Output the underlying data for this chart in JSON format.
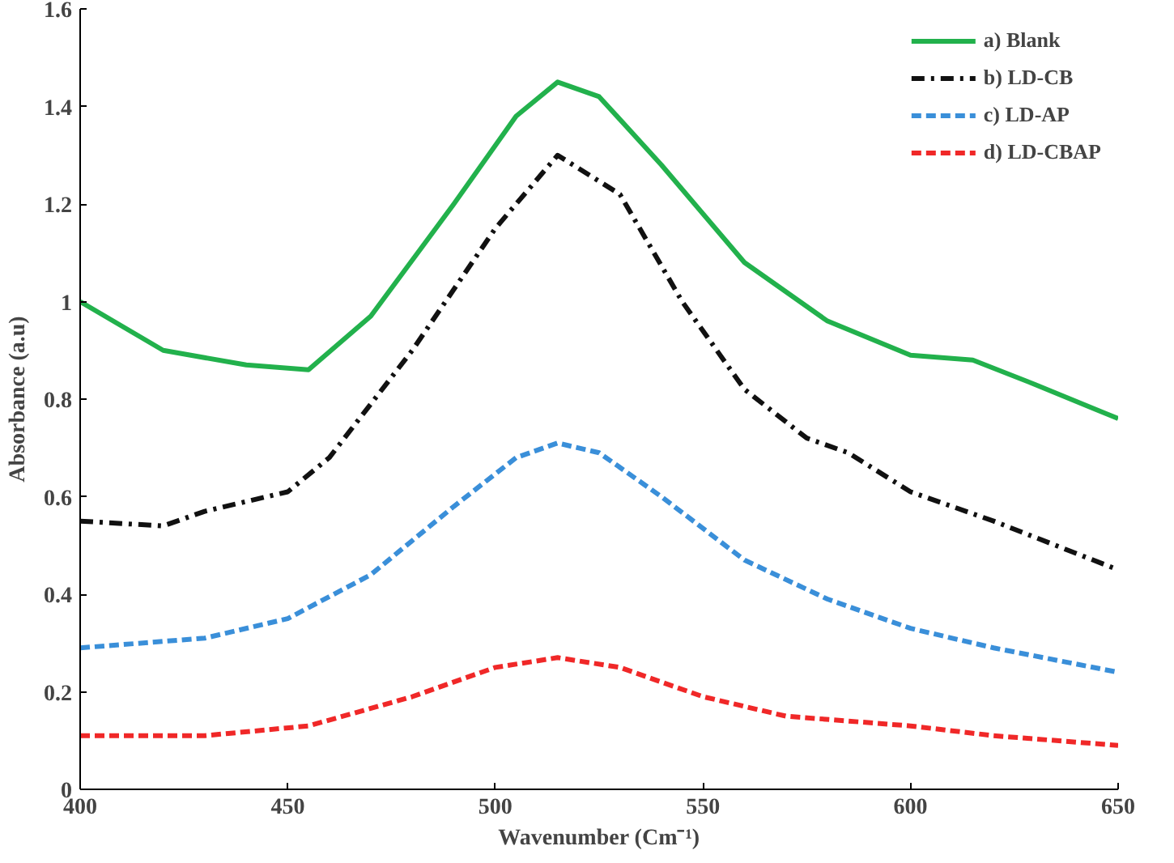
{
  "chart_data": {
    "type": "line",
    "xlabel": "Wavenumber (Cm⁻¹)",
    "ylabel": "Absorbance (a.u)",
    "xlim": [
      400,
      650
    ],
    "xticks": [
      400,
      450,
      500,
      550,
      600,
      650
    ],
    "ylim": [
      0,
      1.6
    ],
    "yticks": [
      {
        "value": 0,
        "label": "0"
      },
      {
        "value": 0.2,
        "label": "0.2"
      },
      {
        "value": 0.4,
        "label": "0.4"
      },
      {
        "value": 0.6,
        "label": "0.6"
      },
      {
        "value": 0.8,
        "label": "0.8"
      },
      {
        "value": 1,
        "label": "1"
      },
      {
        "value": 1.2,
        "label": "1.2"
      },
      {
        "value": 1.4,
        "label": "1.4"
      },
      {
        "value": 1.6,
        "label": "1.6"
      }
    ],
    "grid": false,
    "legend": "top right",
    "marker": "none",
    "series": [
      {
        "name": "a) Blank",
        "color": "#22b14c",
        "line_style": "solid",
        "x": [
          400,
          420,
          440,
          455,
          470,
          490,
          505,
          515,
          525,
          540,
          560,
          580,
          600,
          615,
          630,
          650
        ],
        "values": [
          1.0,
          0.9,
          0.87,
          0.86,
          0.97,
          1.2,
          1.38,
          1.45,
          1.42,
          1.28,
          1.08,
          0.96,
          0.89,
          0.88,
          0.83,
          0.76
        ]
      },
      {
        "name": "b) LD-CB",
        "color": "#111111",
        "line_style": "dashdot",
        "x": [
          400,
          420,
          430,
          450,
          460,
          480,
          500,
          515,
          530,
          545,
          560,
          575,
          585,
          600,
          620,
          650
        ],
        "values": [
          0.55,
          0.54,
          0.57,
          0.61,
          0.68,
          0.9,
          1.15,
          1.3,
          1.22,
          1.0,
          0.82,
          0.72,
          0.69,
          0.61,
          0.55,
          0.45
        ]
      },
      {
        "name": "c) LD-AP",
        "color": "#3a8fd9",
        "line_style": "dashed",
        "x": [
          400,
          430,
          450,
          470,
          490,
          505,
          515,
          525,
          540,
          560,
          580,
          600,
          620,
          650
        ],
        "values": [
          0.29,
          0.31,
          0.35,
          0.44,
          0.58,
          0.68,
          0.71,
          0.69,
          0.6,
          0.47,
          0.39,
          0.33,
          0.29,
          0.24
        ]
      },
      {
        "name": "d) LD-CBAP",
        "color": "#f02828",
        "line_style": "dashed",
        "x": [
          400,
          430,
          455,
          480,
          500,
          515,
          530,
          550,
          570,
          600,
          620,
          650
        ],
        "values": [
          0.11,
          0.11,
          0.13,
          0.19,
          0.25,
          0.27,
          0.25,
          0.19,
          0.15,
          0.13,
          0.11,
          0.09
        ]
      }
    ]
  }
}
